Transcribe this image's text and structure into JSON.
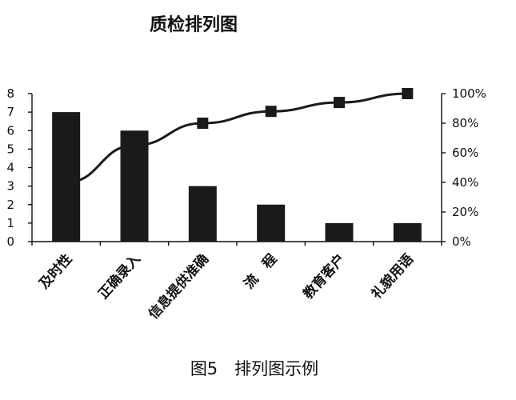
{
  "chart_data": {
    "type": "bar",
    "title": "质检排列图",
    "categories": [
      "及时性",
      "正确录入",
      "信息提供准确",
      "流　程",
      "教育客户",
      "礼貌用语"
    ],
    "series": [
      {
        "type": "bar",
        "values": [
          7,
          6,
          3,
          2,
          1,
          1
        ]
      },
      {
        "type": "line",
        "axis": "right",
        "values": [
          40,
          65,
          80,
          88,
          94,
          100
        ]
      }
    ],
    "y_left": {
      "ylim": [
        0,
        8
      ],
      "ticks": [
        "0",
        "1",
        "2",
        "3",
        "4",
        "5",
        "6",
        "7",
        "8"
      ]
    },
    "y_right": {
      "ylim": [
        0,
        100
      ],
      "ticks": [
        "0%",
        "20%",
        "40%",
        "60%",
        "80%",
        "100%"
      ]
    },
    "grid": false,
    "legend": "none"
  },
  "caption": "图5　排列图示例"
}
